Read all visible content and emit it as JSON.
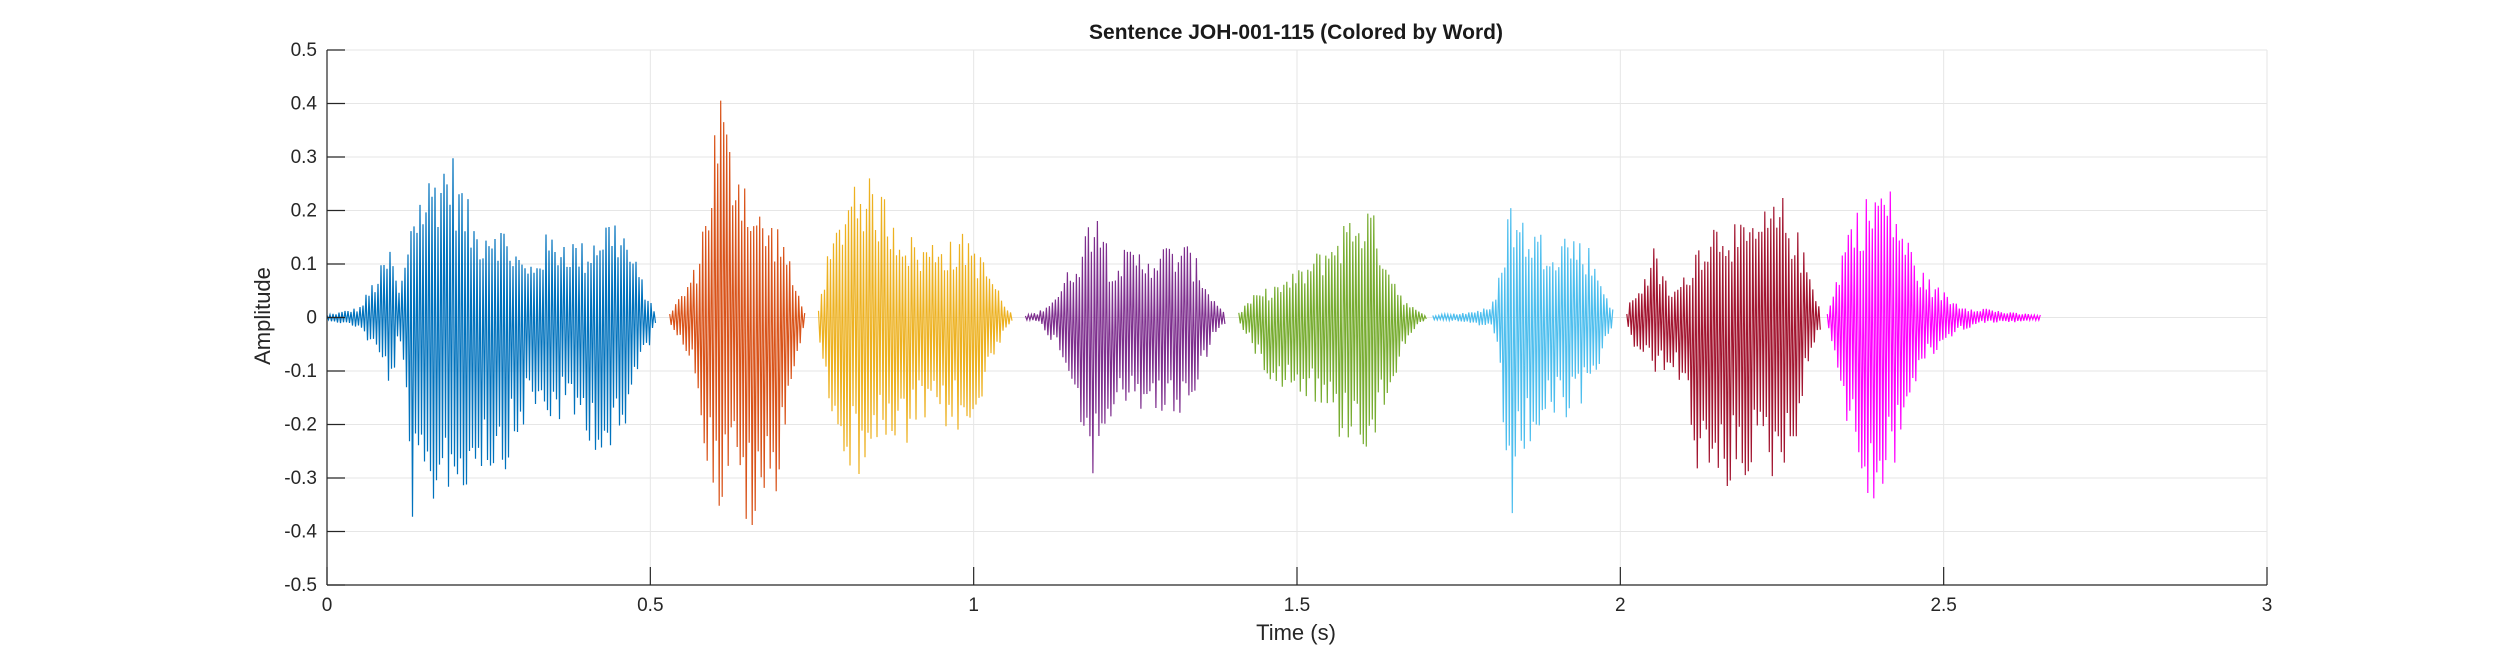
{
  "chart_data": {
    "type": "line",
    "title": "Sentence JOH-001-115 (Colored by Word)",
    "xlabel": "Time (s)",
    "ylabel": "Amplitude",
    "xlim": [
      0,
      3
    ],
    "ylim": [
      -0.5,
      0.5
    ],
    "xticks": [
      0,
      0.5,
      1,
      1.5,
      2,
      2.5,
      3
    ],
    "xtick_labels": [
      "0",
      "0.5",
      "1",
      "1.5",
      "2",
      "2.5",
      "3"
    ],
    "yticks": [
      -0.5,
      -0.4,
      -0.3,
      -0.2,
      -0.1,
      0,
      0.1,
      0.2,
      0.3,
      0.4,
      0.5
    ],
    "ytick_labels": [
      "-0.5",
      "-0.4",
      "-0.3",
      "-0.2",
      "-0.1",
      "0",
      "0.1",
      "0.2",
      "0.3",
      "0.4",
      "0.5"
    ],
    "grid": true,
    "legend": "none",
    "series": [
      {
        "color": "#0072BD",
        "start": 0.0,
        "end": 0.51,
        "envelope": [
          [
            0.0,
            0.005,
            -0.005
          ],
          [
            0.05,
            0.02,
            -0.02
          ],
          [
            0.08,
            0.09,
            -0.08
          ],
          [
            0.1,
            0.14,
            -0.14
          ],
          [
            0.11,
            0.05,
            -0.05
          ],
          [
            0.12,
            0.1,
            -0.12
          ],
          [
            0.13,
            0.22,
            -0.38
          ],
          [
            0.15,
            0.26,
            -0.4
          ],
          [
            0.17,
            0.3,
            -0.35
          ],
          [
            0.19,
            0.33,
            -0.32
          ],
          [
            0.21,
            0.25,
            -0.37
          ],
          [
            0.23,
            0.18,
            -0.28
          ],
          [
            0.26,
            0.2,
            -0.3
          ],
          [
            0.29,
            0.14,
            -0.27
          ],
          [
            0.31,
            0.1,
            -0.18
          ],
          [
            0.34,
            0.16,
            -0.2
          ],
          [
            0.37,
            0.16,
            -0.2
          ],
          [
            0.4,
            0.14,
            -0.22
          ],
          [
            0.42,
            0.18,
            -0.26
          ],
          [
            0.44,
            0.2,
            -0.28
          ],
          [
            0.46,
            0.17,
            -0.25
          ],
          [
            0.48,
            0.1,
            -0.1
          ],
          [
            0.5,
            0.03,
            -0.05
          ],
          [
            0.51,
            0.005,
            -0.005
          ]
        ]
      },
      {
        "color": "#D95319",
        "start": 0.53,
        "end": 0.74,
        "envelope": [
          [
            0.53,
            0.01,
            -0.01
          ],
          [
            0.55,
            0.05,
            -0.05
          ],
          [
            0.57,
            0.1,
            -0.12
          ],
          [
            0.59,
            0.25,
            -0.3
          ],
          [
            0.6,
            0.38,
            -0.33
          ],
          [
            0.61,
            0.46,
            -0.4
          ],
          [
            0.62,
            0.35,
            -0.3
          ],
          [
            0.64,
            0.32,
            -0.36
          ],
          [
            0.66,
            0.22,
            -0.44
          ],
          [
            0.68,
            0.19,
            -0.37
          ],
          [
            0.7,
            0.18,
            -0.31
          ],
          [
            0.71,
            0.14,
            -0.19
          ],
          [
            0.72,
            0.08,
            -0.12
          ],
          [
            0.74,
            0.01,
            -0.01
          ]
        ]
      },
      {
        "color": "#EDB120",
        "start": 0.76,
        "end": 1.06,
        "envelope": [
          [
            0.76,
            0.02,
            -0.02
          ],
          [
            0.77,
            0.1,
            -0.15
          ],
          [
            0.79,
            0.18,
            -0.2
          ],
          [
            0.8,
            0.24,
            -0.28
          ],
          [
            0.82,
            0.3,
            -0.3
          ],
          [
            0.84,
            0.26,
            -0.25
          ],
          [
            0.86,
            0.24,
            -0.26
          ],
          [
            0.88,
            0.2,
            -0.26
          ],
          [
            0.9,
            0.16,
            -0.25
          ],
          [
            0.92,
            0.14,
            -0.2
          ],
          [
            0.95,
            0.16,
            -0.22
          ],
          [
            0.97,
            0.14,
            -0.2
          ],
          [
            0.99,
            0.17,
            -0.26
          ],
          [
            1.01,
            0.12,
            -0.18
          ],
          [
            1.03,
            0.08,
            -0.08
          ],
          [
            1.05,
            0.02,
            -0.02
          ],
          [
            1.06,
            0.005,
            -0.005
          ]
        ]
      },
      {
        "color": "#7E2F8E",
        "start": 1.08,
        "end": 1.39,
        "envelope": [
          [
            1.08,
            0.005,
            -0.005
          ],
          [
            1.1,
            0.01,
            -0.01
          ],
          [
            1.13,
            0.05,
            -0.06
          ],
          [
            1.15,
            0.1,
            -0.12
          ],
          [
            1.17,
            0.15,
            -0.22
          ],
          [
            1.19,
            0.26,
            -0.33
          ],
          [
            1.21,
            0.12,
            -0.2
          ],
          [
            1.24,
            0.13,
            -0.19
          ],
          [
            1.27,
            0.13,
            -0.17
          ],
          [
            1.3,
            0.14,
            -0.2
          ],
          [
            1.33,
            0.14,
            -0.18
          ],
          [
            1.35,
            0.1,
            -0.12
          ],
          [
            1.37,
            0.04,
            -0.04
          ],
          [
            1.39,
            0.01,
            -0.01
          ]
        ]
      },
      {
        "color": "#77AC30",
        "start": 1.41,
        "end": 1.7,
        "envelope": [
          [
            1.41,
            0.01,
            -0.01
          ],
          [
            1.43,
            0.04,
            -0.06
          ],
          [
            1.46,
            0.06,
            -0.12
          ],
          [
            1.49,
            0.08,
            -0.14
          ],
          [
            1.52,
            0.11,
            -0.15
          ],
          [
            1.55,
            0.15,
            -0.2
          ],
          [
            1.57,
            0.18,
            -0.24
          ],
          [
            1.59,
            0.21,
            -0.22
          ],
          [
            1.61,
            0.22,
            -0.26
          ],
          [
            1.63,
            0.16,
            -0.2
          ],
          [
            1.65,
            0.08,
            -0.12
          ],
          [
            1.67,
            0.03,
            -0.04
          ],
          [
            1.69,
            0.01,
            -0.01
          ],
          [
            1.7,
            0.005,
            -0.005
          ]
        ]
      },
      {
        "color": "#4DBEEE",
        "start": 1.71,
        "end": 1.99,
        "envelope": [
          [
            1.71,
            0.005,
            -0.005
          ],
          [
            1.76,
            0.01,
            -0.01
          ],
          [
            1.8,
            0.02,
            -0.02
          ],
          [
            1.81,
            0.06,
            -0.08
          ],
          [
            1.83,
            0.24,
            -0.41
          ],
          [
            1.84,
            0.2,
            -0.32
          ],
          [
            1.86,
            0.18,
            -0.25
          ],
          [
            1.88,
            0.16,
            -0.22
          ],
          [
            1.9,
            0.16,
            -0.2
          ],
          [
            1.92,
            0.17,
            -0.2
          ],
          [
            1.95,
            0.14,
            -0.15
          ],
          [
            1.97,
            0.08,
            -0.08
          ],
          [
            1.99,
            0.01,
            -0.01
          ]
        ]
      },
      {
        "color": "#A2142F",
        "start": 2.01,
        "end": 2.31,
        "envelope": [
          [
            2.01,
            0.01,
            -0.01
          ],
          [
            2.02,
            0.05,
            -0.06
          ],
          [
            2.04,
            0.08,
            -0.08
          ],
          [
            2.05,
            0.14,
            -0.12
          ],
          [
            2.06,
            0.1,
            -0.1
          ],
          [
            2.08,
            0.05,
            -0.1
          ],
          [
            2.1,
            0.08,
            -0.15
          ],
          [
            2.12,
            0.15,
            -0.3
          ],
          [
            2.14,
            0.18,
            -0.35
          ],
          [
            2.16,
            0.2,
            -0.34
          ],
          [
            2.19,
            0.17,
            -0.3
          ],
          [
            2.22,
            0.2,
            -0.3
          ],
          [
            2.25,
            0.23,
            -0.31
          ],
          [
            2.27,
            0.18,
            -0.24
          ],
          [
            2.29,
            0.1,
            -0.1
          ],
          [
            2.31,
            0.02,
            -0.02
          ]
        ]
      },
      {
        "color": "#FF00FF",
        "start": 2.32,
        "end": 2.65,
        "envelope": [
          [
            2.32,
            0.01,
            -0.01
          ],
          [
            2.33,
            0.05,
            -0.07
          ],
          [
            2.35,
            0.18,
            -0.2
          ],
          [
            2.37,
            0.22,
            -0.34
          ],
          [
            2.39,
            0.24,
            -0.36
          ],
          [
            2.4,
            0.27,
            -0.37
          ],
          [
            2.42,
            0.24,
            -0.3
          ],
          [
            2.44,
            0.17,
            -0.2
          ],
          [
            2.46,
            0.1,
            -0.12
          ],
          [
            2.48,
            0.07,
            -0.08
          ],
          [
            2.5,
            0.05,
            -0.05
          ],
          [
            2.52,
            0.03,
            -0.03
          ],
          [
            2.54,
            0.02,
            -0.02
          ],
          [
            2.56,
            0.02,
            -0.01
          ],
          [
            2.6,
            0.01,
            -0.01
          ],
          [
            2.65,
            0.005,
            -0.005
          ]
        ]
      }
    ]
  }
}
